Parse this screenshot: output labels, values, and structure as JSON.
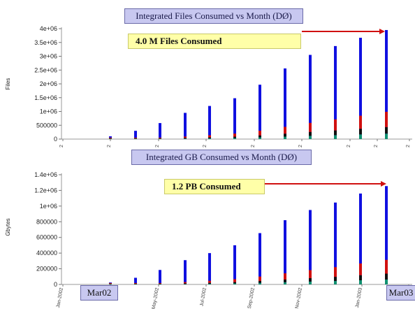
{
  "chart_data": [
    {
      "type": "bar",
      "title": "Integrated Files Consumed vs Month (DØ)",
      "ylabel": "Files",
      "xlabel": "",
      "ylim": [
        0,
        4000000
      ],
      "yticks": [
        "0",
        "500000",
        "1e+06",
        "1.5e+06",
        "2e+06",
        "2.5e+06",
        "3e+06",
        "3.5e+06",
        "4e+06"
      ],
      "categories": [
        "1",
        "2",
        "3",
        "4",
        "5",
        "6",
        "7",
        "8",
        "9",
        "10",
        "11",
        "12",
        "13",
        "14"
      ],
      "tick_labels": [
        "2",
        "2",
        "2",
        "2",
        "2",
        "2",
        "2",
        "2",
        "2"
      ],
      "series": [
        {
          "values": [
            0,
            0,
            100000,
            300000,
            580000,
            950000,
            1200000,
            1480000,
            1970000,
            2560000,
            3050000,
            3370000,
            3670000,
            3950000
          ]
        }
      ],
      "annotation": "4.0 M Files Consumed"
    },
    {
      "type": "bar",
      "title": "Integrated GB Consumed vs Month (DØ)",
      "ylabel": "Gbytes",
      "xlabel": "",
      "ylim": [
        0,
        1400000
      ],
      "yticks": [
        "0",
        "200000",
        "400000",
        "600000",
        "800000",
        "1e+06",
        "1.2e+06",
        "1.4e+06"
      ],
      "categories": [
        "1",
        "2",
        "3",
        "4",
        "5",
        "6",
        "7",
        "8",
        "9",
        "10",
        "11",
        "12",
        "13",
        "14"
      ],
      "tick_labels": [
        "Jan-2002",
        "Mar",
        "May-2002",
        "Jul-2002",
        "Sep-2002",
        "Nov-2002",
        "Jan-2003",
        "Mar"
      ],
      "series": [
        {
          "values": [
            0,
            0,
            25000,
            85000,
            185000,
            310000,
            400000,
            500000,
            655000,
            820000,
            950000,
            1045000,
            1160000,
            1255000
          ]
        }
      ],
      "annotation": "1.2 PB Consumed",
      "start_label": "Mar02",
      "end_label": "Mar03"
    }
  ],
  "colors": {
    "bar": "#1010e0",
    "bar_red": "#d01010",
    "bar_green": "#109070",
    "bar_black": "#111111",
    "arrow": "#d01010",
    "title_bg": "#c8c8f0",
    "callout_bg": "#ffffa8"
  }
}
